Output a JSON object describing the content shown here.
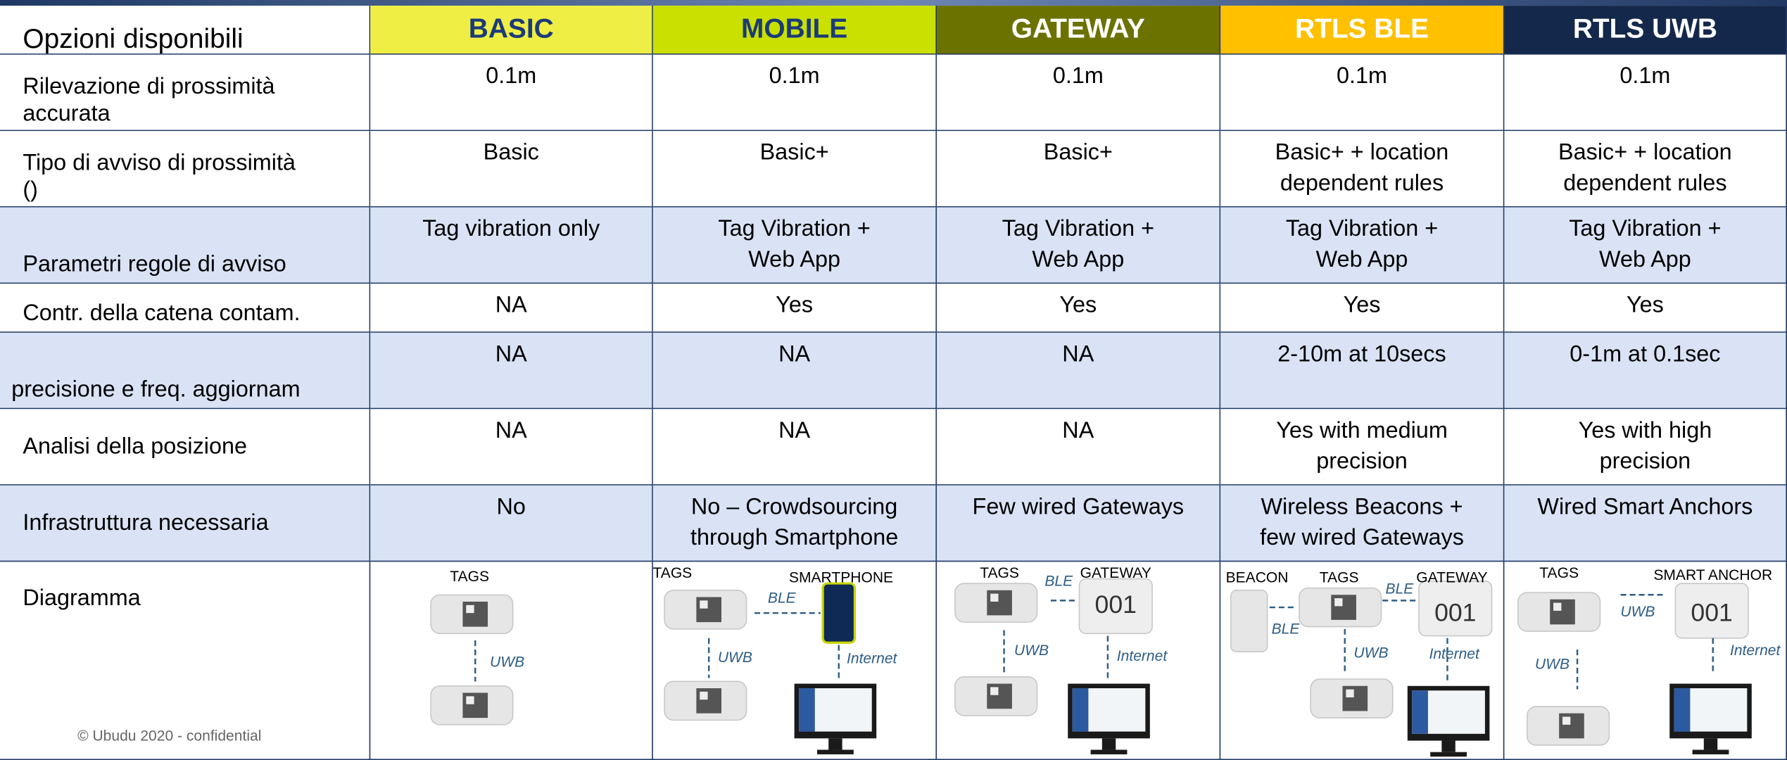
{
  "table": {
    "header": [
      "Opzioni disponibili",
      "BASIC",
      "MOBILE",
      "GATEWAY",
      "RTLS BLE",
      "RTLS UWB"
    ],
    "rows": [
      [
        "Rilevazione di prossimità\naccurata",
        "0.1m",
        "0.1m",
        "0.1m",
        "0.1m",
        "0.1m"
      ],
      [
        "Tipo di avviso di prossimità\n()",
        "Basic",
        "Basic+",
        "Basic+",
        "Basic+ + location\ndependent rules",
        "Basic+ + location\ndependent rules"
      ],
      [
        "Parametri regole di avviso",
        "Tag vibration only",
        "Tag Vibration +\nWeb App",
        "Tag Vibration +\nWeb App",
        "Tag Vibration +\nWeb App",
        "Tag Vibration +\nWeb App"
      ],
      [
        "Contr. della catena contam.",
        "NA",
        "Yes",
        "Yes",
        "Yes",
        "Yes"
      ],
      [
        "precisione e freq. aggiornam",
        "NA",
        "NA",
        "NA",
        "2-10m at 10secs",
        "0-1m at 0.1sec"
      ],
      [
        "Analisi della posizione",
        "NA",
        "NA",
        "NA",
        "Yes with medium\nprecision",
        "Yes with high\nprecision"
      ],
      [
        "Infrastruttura necessaria",
        "No",
        "No – Crowdsourcing\nthrough Smartphone",
        "Few wired Gateways",
        "Wireless Beacons +\nfew wired Gateways",
        "Wired Smart Anchors"
      ]
    ],
    "diagram_label": "Diagramma",
    "diagrams": [
      [
        "TAGS",
        "UWB"
      ],
      [
        "TAGS",
        "SMARTPHONE",
        "BLE",
        "UWB",
        "Internet"
      ],
      [
        "TAGS",
        "BLE",
        "GATEWAY",
        "001",
        "UWB",
        "Internet"
      ],
      [
        "BEACON",
        "TAGS",
        "BLE",
        "GATEWAY",
        "001",
        "BLE",
        "UWB",
        "Internet"
      ],
      [
        "TAGS",
        "SMART ANCHOR",
        "UWB",
        "001",
        "UWB",
        "Internet"
      ]
    ]
  },
  "footer": "© Ubudu 2020 - confidential"
}
